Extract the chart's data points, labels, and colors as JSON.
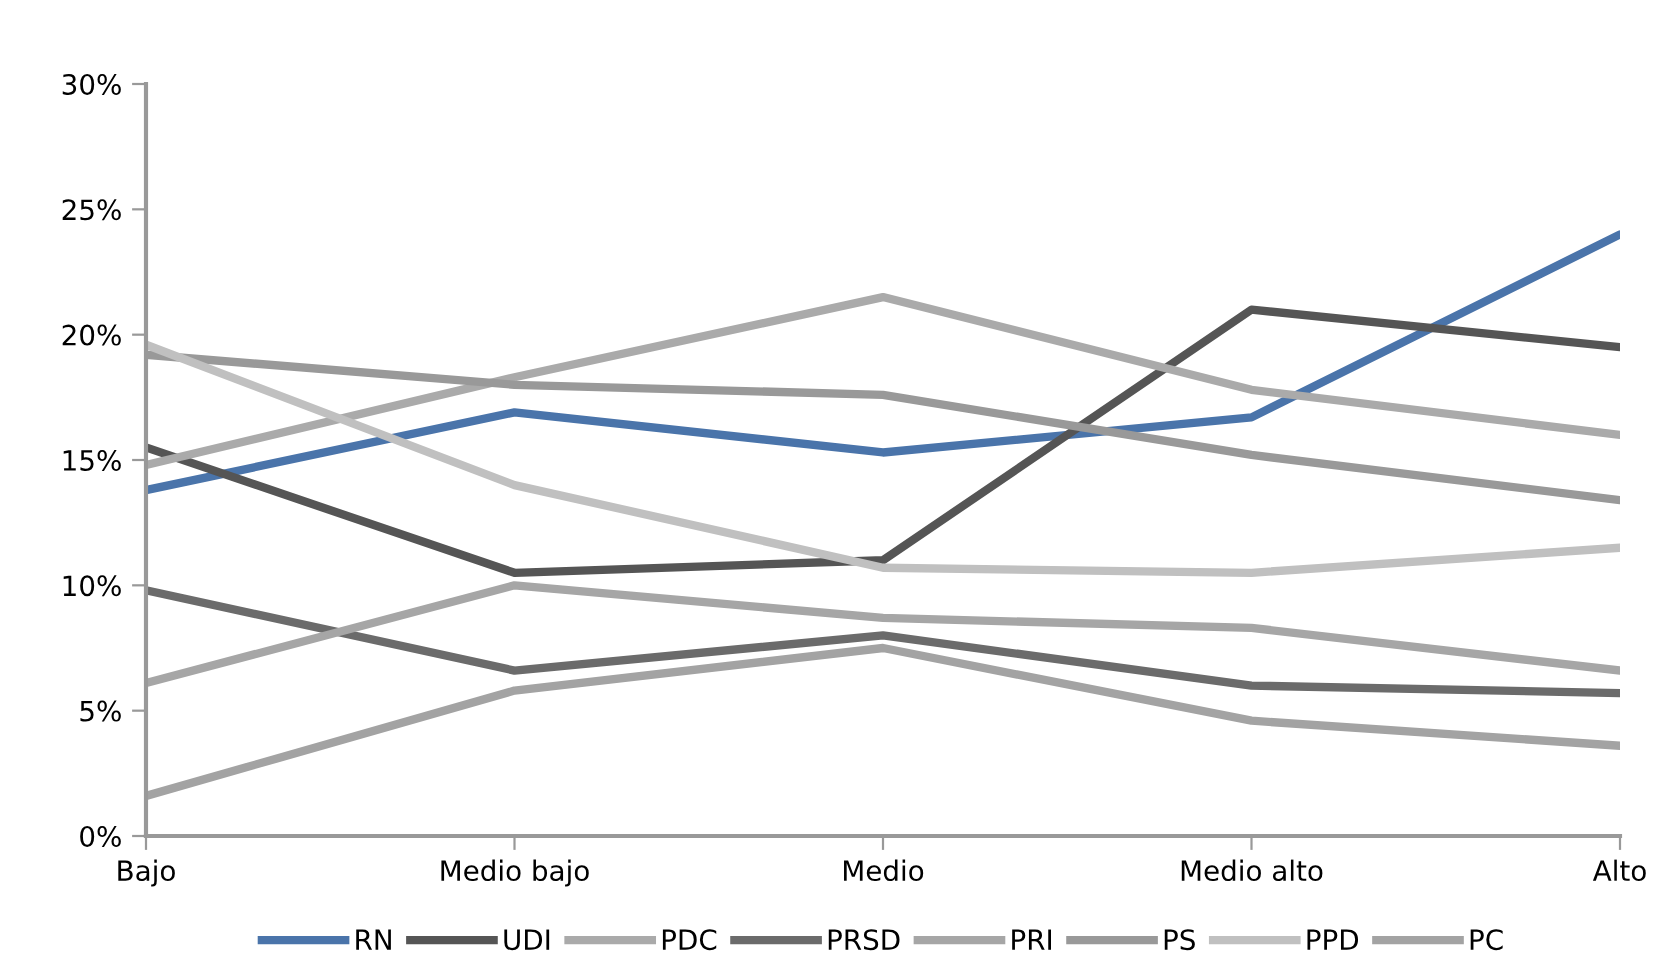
{
  "chart_data": {
    "type": "line",
    "categories": [
      "Bajo",
      "Medio bajo",
      "Medio",
      "Medio alto",
      "Alto"
    ],
    "series": [
      {
        "name": "RN",
        "color": "#4a74aa",
        "values": [
          13.8,
          16.9,
          15.3,
          16.7,
          24.0
        ]
      },
      {
        "name": "UDI",
        "color": "#555555",
        "values": [
          15.5,
          10.5,
          11.0,
          21.0,
          19.5
        ]
      },
      {
        "name": "PDC",
        "color": "#aaaaaa",
        "values": [
          14.8,
          18.3,
          21.5,
          17.8,
          16.0
        ]
      },
      {
        "name": "PRSD",
        "color": "#6b6b6b",
        "values": [
          9.8,
          6.6,
          8.0,
          6.0,
          5.7
        ]
      },
      {
        "name": "PRI",
        "color": "#a6a6a6",
        "values": [
          6.1,
          10.0,
          8.7,
          8.3,
          6.6
        ]
      },
      {
        "name": "PS",
        "color": "#999999",
        "values": [
          19.2,
          18.0,
          17.6,
          15.2,
          13.4
        ]
      },
      {
        "name": "PPD",
        "color": "#c0c0c0",
        "values": [
          19.6,
          14.0,
          10.7,
          10.5,
          11.5
        ]
      },
      {
        "name": "PC",
        "color": "#a3a3a3",
        "values": [
          1.6,
          5.8,
          7.5,
          4.6,
          3.6
        ]
      }
    ],
    "ylim": [
      0,
      30
    ],
    "yticks": [
      {
        "value": 0,
        "label": "0%"
      },
      {
        "value": 5,
        "label": "5%"
      },
      {
        "value": 10,
        "label": "10%"
      },
      {
        "value": 15,
        "label": "15%"
      },
      {
        "value": 20,
        "label": "20%"
      },
      {
        "value": 25,
        "label": "25%"
      },
      {
        "value": 30,
        "label": "30%"
      }
    ],
    "grid": false,
    "legend": "bottom",
    "marker": "none",
    "line_style": "solid"
  }
}
